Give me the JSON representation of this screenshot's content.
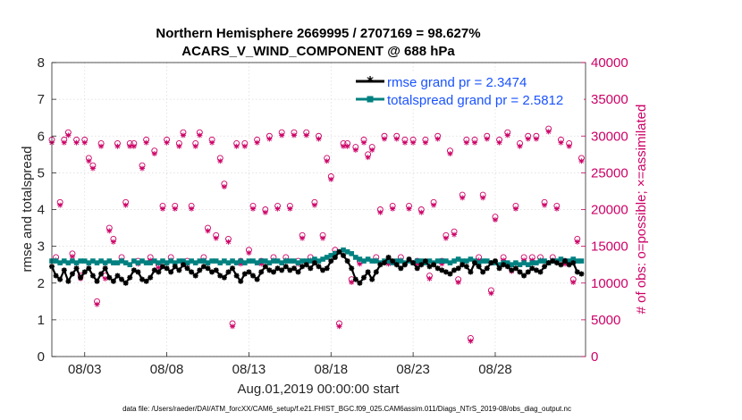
{
  "chart_data": {
    "type": "line",
    "title_line1": "Northern Hemisphere 2669995 / 2707169 = 98.627%",
    "title_line2": "ACARS_V_WIND_COMPONENT @ 688 hPa",
    "xlabel": "Aug.01,2019 00:00:00 start",
    "ylabel_left": "rmse and totalspread",
    "ylabel_right": "# of obs: o=possible; ×=assimilated",
    "xlim": [
      1,
      33.5
    ],
    "ylim_left": [
      0,
      8
    ],
    "ylim_right": [
      0,
      40000
    ],
    "x_ticks": [
      {
        "value": 3,
        "label": "08/03"
      },
      {
        "value": 8,
        "label": "08/08"
      },
      {
        "value": 13,
        "label": "08/13"
      },
      {
        "value": 18,
        "label": "08/18"
      },
      {
        "value": 23,
        "label": "08/23"
      },
      {
        "value": 28,
        "label": "08/28"
      }
    ],
    "y_left_ticks": [
      "0",
      "1",
      "2",
      "3",
      "4",
      "5",
      "6",
      "7",
      "8"
    ],
    "y_right_ticks": [
      "0",
      "5000",
      "10000",
      "15000",
      "20000",
      "25000",
      "30000",
      "35000",
      "40000"
    ],
    "legend": [
      "rmse grand pr = 2.3474",
      "totalspread grand pr = 2.5812"
    ],
    "footer": "data file: /Users/raeder/DAI/ATM_forcXX/CAM6_setup/f.e21.FHIST_BGC.f09_025.CAM6assim.011/Diags_NTrS_2019-08/obs_diag_output.nc",
    "colors": {
      "rmse": "#000000",
      "spread": "#008080",
      "obs": "#cc0066",
      "legend_text": "#1a53ff"
    },
    "series": [
      {
        "name": "rmse",
        "x": [
          1.0,
          1.25,
          1.5,
          1.75,
          2.0,
          2.25,
          2.5,
          2.75,
          3.0,
          3.25,
          3.5,
          3.75,
          4.0,
          4.25,
          4.5,
          4.75,
          5.0,
          5.25,
          5.5,
          5.75,
          6.0,
          6.25,
          6.5,
          6.75,
          7.0,
          7.25,
          7.5,
          7.75,
          8.0,
          8.25,
          8.5,
          8.75,
          9.0,
          9.25,
          9.5,
          9.75,
          10.0,
          10.25,
          10.5,
          10.75,
          11.0,
          11.25,
          11.5,
          11.75,
          12.0,
          12.25,
          12.5,
          12.75,
          13.0,
          13.25,
          13.5,
          13.75,
          14.0,
          14.25,
          14.5,
          14.75,
          15.0,
          15.25,
          15.5,
          15.75,
          16.0,
          16.25,
          16.5,
          16.75,
          17.0,
          17.25,
          17.5,
          17.75,
          18.0,
          18.25,
          18.5,
          18.75,
          19.0,
          19.25,
          19.5,
          19.75,
          20.0,
          20.25,
          20.5,
          20.75,
          21.0,
          21.25,
          21.5,
          21.75,
          22.0,
          22.25,
          22.5,
          22.75,
          23.0,
          23.25,
          23.5,
          23.75,
          24.0,
          24.25,
          24.5,
          24.75,
          25.0,
          25.25,
          25.5,
          25.75,
          26.0,
          26.25,
          26.5,
          26.75,
          27.0,
          27.25,
          27.5,
          27.75,
          28.0,
          28.25,
          28.5,
          28.75,
          29.0,
          29.25,
          29.5,
          29.75,
          30.0,
          30.25,
          30.5,
          30.75,
          31.0,
          31.25,
          31.5,
          31.75,
          32.0,
          32.25,
          32.5,
          32.75,
          33.0,
          33.25
        ],
        "values": [
          2.45,
          2.2,
          2.1,
          2.35,
          2.05,
          2.25,
          2.4,
          2.15,
          2.3,
          2.4,
          2.2,
          2.05,
          2.25,
          2.4,
          2.15,
          2.05,
          2.2,
          2.1,
          2.0,
          2.15,
          2.35,
          2.3,
          2.1,
          2.05,
          2.15,
          2.35,
          2.3,
          2.45,
          2.4,
          2.3,
          2.45,
          2.35,
          2.5,
          2.4,
          2.3,
          2.2,
          2.35,
          2.45,
          2.4,
          2.3,
          2.35,
          2.2,
          2.15,
          2.3,
          2.4,
          2.2,
          2.05,
          2.25,
          2.3,
          2.2,
          2.1,
          2.3,
          2.45,
          2.35,
          2.3,
          2.4,
          2.35,
          2.45,
          2.35,
          2.4,
          2.3,
          2.45,
          2.5,
          2.4,
          2.55,
          2.45,
          2.35,
          2.4,
          2.6,
          2.7,
          2.85,
          2.75,
          2.6,
          2.4,
          2.1,
          2.0,
          2.15,
          2.3,
          2.1,
          2.3,
          2.5,
          2.55,
          2.7,
          2.6,
          2.5,
          2.4,
          2.5,
          2.65,
          2.55,
          2.4,
          2.5,
          2.6,
          2.45,
          2.5,
          2.4,
          2.35,
          2.3,
          2.25,
          2.35,
          2.4,
          2.5,
          2.45,
          2.3,
          2.55,
          2.45,
          2.3,
          2.4,
          2.55,
          2.6,
          2.4,
          2.5,
          2.45,
          2.35,
          2.4,
          2.3,
          2.2,
          2.3,
          2.4,
          2.35,
          2.3,
          2.45,
          2.55,
          2.6,
          2.55,
          2.5,
          2.6,
          2.5,
          2.55,
          2.3,
          2.25
        ]
      },
      {
        "name": "totalspread",
        "x": [
          1.0,
          1.25,
          1.5,
          1.75,
          2.0,
          2.25,
          2.5,
          2.75,
          3.0,
          3.25,
          3.5,
          3.75,
          4.0,
          4.25,
          4.5,
          4.75,
          5.0,
          5.25,
          5.5,
          5.75,
          6.0,
          6.25,
          6.5,
          6.75,
          7.0,
          7.25,
          7.5,
          7.75,
          8.0,
          8.25,
          8.5,
          8.75,
          9.0,
          9.25,
          9.5,
          9.75,
          10.0,
          10.25,
          10.5,
          10.75,
          11.0,
          11.25,
          11.5,
          11.75,
          12.0,
          12.25,
          12.5,
          12.75,
          13.0,
          13.25,
          13.5,
          13.75,
          14.0,
          14.25,
          14.5,
          14.75,
          15.0,
          15.25,
          15.5,
          15.75,
          16.0,
          16.25,
          16.5,
          16.75,
          17.0,
          17.25,
          17.5,
          17.75,
          18.0,
          18.25,
          18.5,
          18.75,
          19.0,
          19.25,
          19.5,
          19.75,
          20.0,
          20.25,
          20.5,
          20.75,
          21.0,
          21.25,
          21.5,
          21.75,
          22.0,
          22.25,
          22.5,
          22.75,
          23.0,
          23.25,
          23.5,
          23.75,
          24.0,
          24.25,
          24.5,
          24.75,
          25.0,
          25.25,
          25.5,
          25.75,
          26.0,
          26.25,
          26.5,
          26.75,
          27.0,
          27.25,
          27.5,
          27.75,
          28.0,
          28.25,
          28.5,
          28.75,
          29.0,
          29.25,
          29.5,
          29.75,
          30.0,
          30.25,
          30.5,
          30.75,
          31.0,
          31.25,
          31.5,
          31.75,
          32.0,
          32.25,
          32.5,
          32.75,
          33.0,
          33.25
        ],
        "values": [
          2.6,
          2.6,
          2.55,
          2.6,
          2.55,
          2.6,
          2.55,
          2.6,
          2.6,
          2.55,
          2.6,
          2.55,
          2.6,
          2.55,
          2.6,
          2.55,
          2.55,
          2.6,
          2.55,
          2.5,
          2.6,
          2.55,
          2.6,
          2.55,
          2.55,
          2.6,
          2.55,
          2.6,
          2.55,
          2.6,
          2.55,
          2.6,
          2.6,
          2.55,
          2.6,
          2.55,
          2.6,
          2.6,
          2.55,
          2.6,
          2.6,
          2.55,
          2.6,
          2.55,
          2.6,
          2.55,
          2.6,
          2.55,
          2.6,
          2.6,
          2.55,
          2.6,
          2.6,
          2.55,
          2.6,
          2.6,
          2.55,
          2.6,
          2.6,
          2.6,
          2.55,
          2.6,
          2.6,
          2.6,
          2.65,
          2.6,
          2.65,
          2.7,
          2.75,
          2.8,
          2.85,
          2.9,
          2.85,
          2.8,
          2.7,
          2.65,
          2.6,
          2.65,
          2.6,
          2.6,
          2.55,
          2.6,
          2.6,
          2.55,
          2.6,
          2.6,
          2.55,
          2.6,
          2.55,
          2.6,
          2.6,
          2.55,
          2.6,
          2.55,
          2.6,
          2.6,
          2.6,
          2.55,
          2.6,
          2.65,
          2.6,
          2.6,
          2.65,
          2.6,
          2.55,
          2.6,
          2.6,
          2.55,
          2.55,
          2.5,
          2.55,
          2.55,
          2.5,
          2.55,
          2.5,
          2.55,
          2.5,
          2.55,
          2.55,
          2.6,
          2.6,
          2.55,
          2.6,
          2.6,
          2.65,
          2.6,
          2.6,
          2.65,
          2.6,
          2.6
        ]
      },
      {
        "name": "obs_possible",
        "x": [
          1.0,
          1.25,
          1.5,
          1.75,
          2.0,
          2.25,
          2.5,
          2.75,
          3.0,
          3.25,
          3.5,
          3.75,
          4.0,
          4.25,
          4.5,
          4.75,
          5.0,
          5.25,
          5.5,
          5.75,
          6.0,
          6.25,
          6.5,
          6.75,
          7.0,
          7.25,
          7.5,
          7.75,
          8.0,
          8.25,
          8.5,
          8.75,
          9.0,
          9.25,
          9.5,
          9.75,
          10.0,
          10.25,
          10.5,
          10.75,
          11.0,
          11.25,
          11.5,
          11.75,
          12.0,
          12.25,
          12.5,
          12.75,
          13.0,
          13.25,
          13.5,
          13.75,
          14.0,
          14.25,
          14.5,
          14.75,
          15.0,
          15.25,
          15.5,
          15.75,
          16.0,
          16.25,
          16.5,
          16.75,
          17.0,
          17.25,
          17.5,
          17.75,
          18.0,
          18.25,
          18.5,
          18.75,
          19.0,
          19.25,
          19.5,
          19.75,
          20.0,
          20.25,
          20.5,
          20.75,
          21.0,
          21.25,
          21.5,
          21.75,
          22.0,
          22.25,
          22.5,
          22.75,
          23.0,
          23.25,
          23.5,
          23.75,
          24.0,
          24.25,
          24.5,
          24.75,
          25.0,
          25.25,
          25.5,
          25.75,
          26.0,
          26.25,
          26.5,
          26.75,
          27.0,
          27.25,
          27.5,
          27.75,
          28.0,
          28.25,
          28.5,
          28.75,
          29.0,
          29.25,
          29.5,
          29.75,
          30.0,
          30.25,
          30.5,
          30.75,
          31.0,
          31.25,
          31.5,
          31.75,
          32.0,
          32.25,
          32.5,
          32.75,
          33.0,
          33.25
        ],
        "values": [
          29500,
          13500,
          21000,
          29500,
          30500,
          14000,
          29500,
          11000,
          29500,
          27000,
          26000,
          7500,
          29000,
          11000,
          17500,
          16000,
          29000,
          13500,
          21000,
          29000,
          29000,
          13000,
          26000,
          29500,
          13500,
          28000,
          12500,
          20500,
          29500,
          13500,
          20500,
          29000,
          30500,
          13000,
          20500,
          29000,
          30500,
          13500,
          17500,
          29500,
          16500,
          27000,
          23500,
          16000,
          4500,
          29000,
          13000,
          29000,
          14500,
          20500,
          29500,
          13000,
          20000,
          30000,
          13500,
          20500,
          30500,
          13500,
          20500,
          30500,
          13000,
          16500,
          30500,
          13500,
          21000,
          30000,
          16500,
          27000,
          24500,
          14500,
          4500,
          29000,
          29000,
          10500,
          28500,
          13000,
          29500,
          27500,
          28500,
          13500,
          20000,
          30000,
          13000,
          20500,
          30000,
          13500,
          29500,
          20500,
          29500,
          13000,
          20000,
          29500,
          11000,
          21000,
          30000,
          13000,
          16500,
          28000,
          17000,
          10500,
          22000,
          29500,
          2500,
          29500,
          13500,
          22000,
          30000,
          9000,
          19000,
          29500,
          13500,
          30500,
          12000,
          20500,
          29000,
          13500,
          30000,
          13500,
          30000,
          13500,
          21000,
          31000,
          13500,
          20500,
          29500,
          13000,
          29000,
          10500,
          16000,
          27000
        ]
      },
      {
        "name": "obs_assimilated",
        "x": [
          1.0,
          1.25,
          1.5,
          1.75,
          2.0,
          2.25,
          2.5,
          2.75,
          3.0,
          3.25,
          3.5,
          3.75,
          4.0,
          4.25,
          4.5,
          4.75,
          5.0,
          5.25,
          5.5,
          5.75,
          6.0,
          6.25,
          6.5,
          6.75,
          7.0,
          7.25,
          7.5,
          7.75,
          8.0,
          8.25,
          8.5,
          8.75,
          9.0,
          9.25,
          9.5,
          9.75,
          10.0,
          10.25,
          10.5,
          10.75,
          11.0,
          11.25,
          11.5,
          11.75,
          12.0,
          12.25,
          12.5,
          12.75,
          13.0,
          13.25,
          13.5,
          13.75,
          14.0,
          14.25,
          14.5,
          14.75,
          15.0,
          15.25,
          15.5,
          15.75,
          16.0,
          16.25,
          16.5,
          16.75,
          17.0,
          17.25,
          17.5,
          17.75,
          18.0,
          18.25,
          18.5,
          18.75,
          19.0,
          19.25,
          19.5,
          19.75,
          20.0,
          20.25,
          20.5,
          20.75,
          21.0,
          21.25,
          21.5,
          21.75,
          22.0,
          22.25,
          22.5,
          22.75,
          23.0,
          23.25,
          23.5,
          23.75,
          24.0,
          24.25,
          24.5,
          24.75,
          25.0,
          25.25,
          25.5,
          25.75,
          26.0,
          26.25,
          26.5,
          26.75,
          27.0,
          27.25,
          27.5,
          27.75,
          28.0,
          28.25,
          28.5,
          28.75,
          29.0,
          29.25,
          29.5,
          29.75,
          30.0,
          30.25,
          30.5,
          30.75,
          31.0,
          31.25,
          31.5,
          31.75,
          32.0,
          32.25,
          32.5,
          32.75,
          33.0,
          33.25
        ],
        "values": [
          29100,
          13100,
          20600,
          29100,
          30100,
          13600,
          29100,
          10600,
          29100,
          26600,
          25600,
          7100,
          28600,
          10600,
          17100,
          15600,
          28600,
          13100,
          20600,
          28600,
          28600,
          12600,
          25600,
          29100,
          13100,
          27600,
          12100,
          20100,
          29100,
          13100,
          20100,
          28600,
          30100,
          12600,
          20100,
          28600,
          30100,
          13100,
          17100,
          29100,
          16100,
          26600,
          23100,
          15600,
          4100,
          28600,
          12600,
          28600,
          14100,
          20100,
          29100,
          12600,
          19600,
          29600,
          13100,
          20100,
          30100,
          13100,
          20100,
          30100,
          12600,
          16100,
          30100,
          13100,
          20600,
          29600,
          16100,
          26600,
          24100,
          14100,
          4100,
          28600,
          28600,
          10100,
          28100,
          12600,
          29100,
          27100,
          28100,
          13100,
          19600,
          29600,
          12600,
          20100,
          29600,
          13100,
          29100,
          20100,
          29100,
          12600,
          19600,
          29100,
          10600,
          20600,
          29600,
          12600,
          16100,
          27600,
          16600,
          10100,
          21600,
          29100,
          2100,
          29100,
          13100,
          21600,
          29600,
          8600,
          18600,
          29100,
          13100,
          30100,
          11600,
          20100,
          28600,
          13100,
          29600,
          13100,
          29600,
          13100,
          20600,
          30600,
          13100,
          20100,
          29100,
          12600,
          28600,
          10100,
          15600,
          26600
        ]
      }
    ]
  }
}
